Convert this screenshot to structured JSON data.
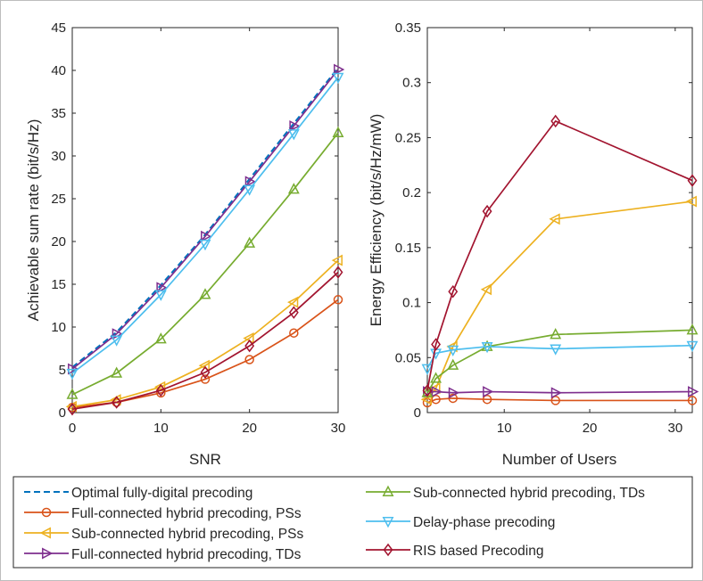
{
  "chart_data": [
    {
      "type": "line",
      "xlabel": "SNR",
      "ylabel": "Achievable sum rate (bit/s/Hz)",
      "xlim": [
        0,
        30
      ],
      "ylim": [
        0,
        45
      ],
      "xticks": [
        0,
        10,
        20,
        30
      ],
      "yticks": [
        0,
        5,
        10,
        15,
        20,
        25,
        30,
        35,
        40,
        45
      ],
      "grid": false,
      "x": [
        0,
        5,
        10,
        15,
        20,
        25,
        30
      ],
      "series": [
        {
          "name": "Optimal fully-digital precoding",
          "color": "#0072BD",
          "marker": "none",
          "dash": true,
          "values": [
            5.3,
            9.4,
            14.9,
            20.8,
            27.3,
            33.8,
            40.3
          ]
        },
        {
          "name": "Full-connected hybrid precoding, PSs",
          "color": "#D95319",
          "marker": "circle",
          "values": [
            0.6,
            1.2,
            2.3,
            3.9,
            6.2,
            9.3,
            13.2
          ]
        },
        {
          "name": "Sub-connected hybrid precoding, PSs",
          "color": "#EDB120",
          "marker": "triangle-left",
          "values": [
            0.7,
            1.5,
            3.0,
            5.5,
            8.7,
            12.9,
            17.8
          ]
        },
        {
          "name": "Full-connected hybrid precoding, TDs",
          "color": "#7E2F8E",
          "marker": "triangle-right",
          "values": [
            5.1,
            9.2,
            14.6,
            20.6,
            27.0,
            33.5,
            40.1
          ]
        },
        {
          "name": "Sub-connected hybrid precoding, TDs",
          "color": "#77AC30",
          "marker": "triangle-up",
          "values": [
            2.1,
            4.6,
            8.6,
            13.8,
            19.8,
            26.1,
            32.7
          ]
        },
        {
          "name": "Delay-phase precoding",
          "color": "#4DBEEE",
          "marker": "triangle-down",
          "values": [
            4.6,
            8.5,
            13.8,
            19.7,
            26.1,
            32.6,
            39.2
          ]
        },
        {
          "name": "RIS based Precoding",
          "color": "#A2142F",
          "marker": "diamond",
          "values": [
            0.4,
            1.2,
            2.6,
            4.7,
            7.8,
            11.7,
            16.4
          ]
        }
      ]
    },
    {
      "type": "line",
      "xlabel": "Number of Users",
      "ylabel": "Energy Efficiency (bit/s/Hz/mW)",
      "xlim": [
        1,
        32
      ],
      "ylim": [
        0,
        0.35
      ],
      "xticks": [
        10,
        20,
        30
      ],
      "yticks": [
        0,
        0.05,
        0.1,
        0.15,
        0.2,
        0.25,
        0.3,
        0.35
      ],
      "grid": false,
      "x": [
        1,
        2,
        4,
        8,
        16,
        32
      ],
      "series": [
        {
          "name": "Optimal fully-digital precoding",
          "color": "#0072BD",
          "marker": "none",
          "dash": true,
          "values": [
            null,
            null,
            null,
            null,
            null,
            null
          ]
        },
        {
          "name": "Full-connected hybrid precoding, PSs",
          "color": "#D95319",
          "marker": "circle",
          "values": [
            0.009,
            0.012,
            0.013,
            0.012,
            0.011,
            0.011
          ]
        },
        {
          "name": "Sub-connected hybrid precoding, PSs",
          "color": "#EDB120",
          "marker": "triangle-left",
          "values": [
            0.012,
            0.022,
            0.06,
            0.112,
            0.176,
            0.192
          ]
        },
        {
          "name": "Full-connected hybrid precoding, TDs",
          "color": "#7E2F8E",
          "marker": "triangle-right",
          "values": [
            0.019,
            0.019,
            0.018,
            0.019,
            0.018,
            0.019
          ]
        },
        {
          "name": "Sub-connected hybrid precoding, TDs",
          "color": "#77AC30",
          "marker": "triangle-up",
          "values": [
            0.018,
            0.031,
            0.043,
            0.06,
            0.071,
            0.075
          ]
        },
        {
          "name": "Delay-phase precoding",
          "color": "#4DBEEE",
          "marker": "triangle-down",
          "values": [
            0.04,
            0.054,
            0.057,
            0.06,
            0.058,
            0.061
          ]
        },
        {
          "name": "RIS based Precoding",
          "color": "#A2142F",
          "marker": "diamond",
          "values": [
            0.02,
            0.062,
            0.11,
            0.183,
            0.265,
            0.211
          ]
        }
      ]
    }
  ],
  "legend": {
    "placement": "bottom",
    "entries": [
      "Optimal fully-digital precoding",
      "Full-connected hybrid precoding, PSs",
      "Sub-connected hybrid precoding, PSs",
      "Full-connected hybrid precoding, TDs",
      "Sub-connected hybrid precoding, TDs",
      "Delay-phase precoding",
      "RIS based Precoding"
    ]
  }
}
